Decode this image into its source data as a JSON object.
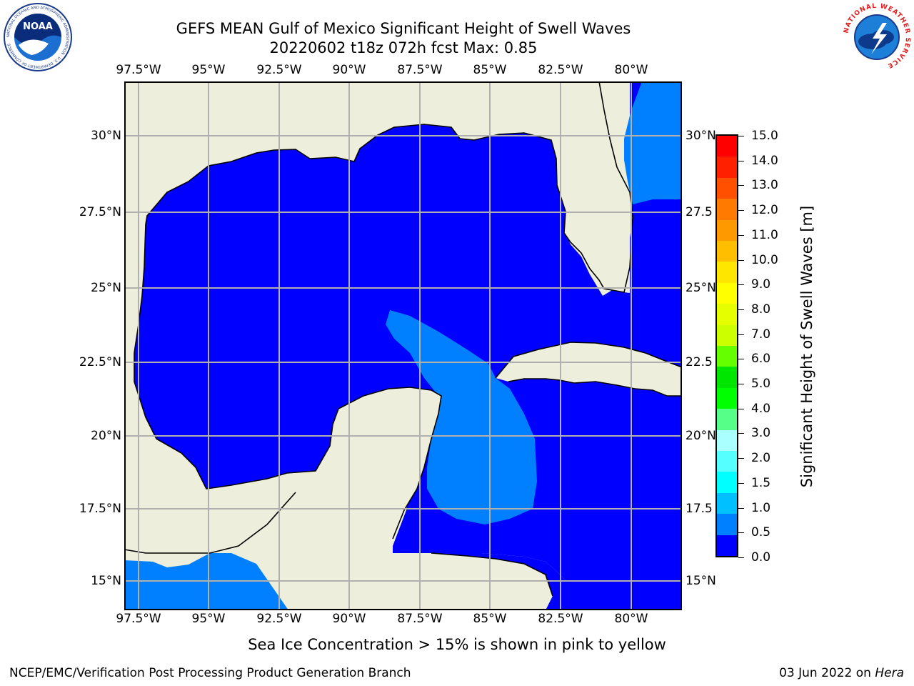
{
  "title": {
    "line1": "GEFS MEAN Gulf of Mexico Significant Height of Swell Waves",
    "line2": "20220602 t18z 072h fcst   Max: 0.85"
  },
  "map": {
    "lon_labels": [
      "97.5°W",
      "95°W",
      "92.5°W",
      "90°W",
      "87.5°W",
      "85°W",
      "82.5°W",
      "80°W"
    ],
    "lat_labels_left": [
      "30°N",
      "27.5°N",
      "25°N",
      "22.5°N",
      "20°N",
      "17.5°N",
      "15°N"
    ],
    "lat_labels_right": [
      "30°N",
      "27.5",
      "25°N",
      "22.5",
      "20°N",
      "17.5",
      "15°N"
    ],
    "land_color": "#eeeedc",
    "low_swell_color": "#0000ff",
    "mid_swell_color": "#0080ff",
    "grid_color": "#b0b0b0"
  },
  "colorbar": {
    "label": "Significant Height of Swell Waves [m]",
    "ticks": [
      "15.0",
      "14.0",
      "13.0",
      "12.0",
      "11.0",
      "10.0",
      "9.0",
      "8.0",
      "7.0",
      "6.0",
      "5.0",
      "4.0",
      "3.0",
      "2.0",
      "1.5",
      "1.0",
      "0.5",
      "0.0"
    ],
    "colors_top_to_bottom": [
      "#ff0000",
      "#ff2000",
      "#ff5000",
      "#ff7a00",
      "#ff9900",
      "#ffbf00",
      "#ffe600",
      "#ffff00",
      "#e6ff00",
      "#ccff00",
      "#66ff00",
      "#00e600",
      "#00ff00",
      "#55ff88",
      "#aaffff",
      "#55ffff",
      "#00ffff",
      "#00c0ff",
      "#0080ff",
      "#0000ff"
    ]
  },
  "footer": {
    "note": "Sea Ice Concentration > 15% is shown in pink to yellow",
    "left": "NCEP/EMC/Verification Post Processing Product Generation Branch",
    "date": "03 Jun 2022 on ",
    "host": "Hera"
  },
  "logos": {
    "noaa_text": "NOAA",
    "noaa_ring": "NATIONAL OCEANIC AND ATMOSPHERIC ADMINISTRATION · U.S. DEPARTMENT OF COMMERCE",
    "nws_ring": "NATIONAL WEATHER SERVICE"
  }
}
